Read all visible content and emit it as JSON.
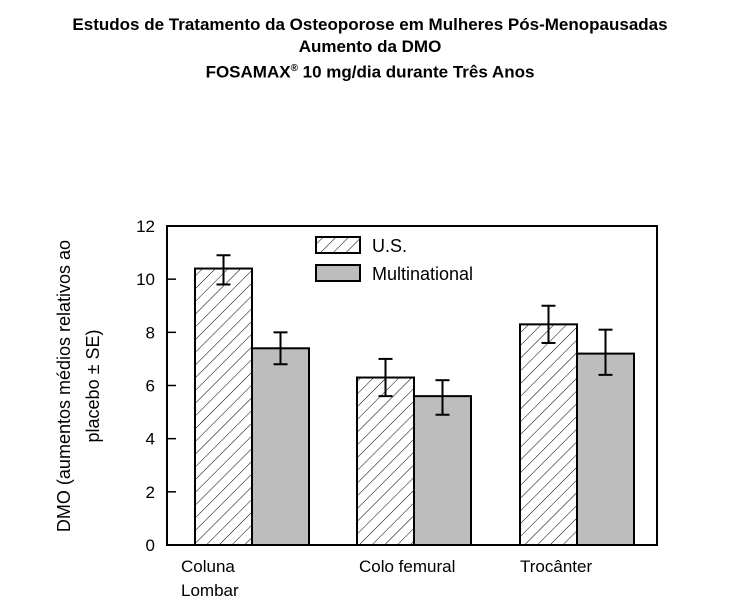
{
  "chart_data": {
    "type": "bar",
    "title_lines": [
      "Estudos de Tratamento da Osteoporose em Mulheres Pós-Menopausadas",
      "Aumento da DMO"
    ],
    "title_line3_brand": "FOSAMAX",
    "title_line3_mark": "®",
    "title_line3_rest": " 10 mg/dia durante Três Anos",
    "ylabel_line1": "DMO (aumentos médios relativos ao",
    "ylabel_line2": "placebo ± SE)",
    "xlabel": "",
    "categories": [
      "Coluna Lombar",
      "Colo femural",
      "Trocânter"
    ],
    "category_lines": [
      [
        "Coluna",
        "Lombar"
      ],
      [
        "Colo femural"
      ],
      [
        "Trocânter"
      ]
    ],
    "ylim": [
      0,
      12
    ],
    "yticks": [
      0,
      2,
      4,
      6,
      8,
      10,
      12
    ],
    "ytick_labels": [
      "0",
      "2",
      "4",
      "6",
      "8",
      "10",
      "12"
    ],
    "grid": false,
    "legend_position": "top-center",
    "series": [
      {
        "name": "U.S.",
        "values": [
          10.4,
          6.3,
          8.3
        ],
        "err_low": [
          9.8,
          5.6,
          7.6
        ],
        "err_high": [
          10.9,
          7.0,
          9.0
        ],
        "pattern": "hatched",
        "color": "#ffffff"
      },
      {
        "name": "Multinational",
        "values": [
          7.4,
          5.6,
          7.2
        ],
        "err_low": [
          6.8,
          4.9,
          6.4
        ],
        "err_high": [
          8.0,
          6.2,
          8.1
        ],
        "pattern": "solid",
        "color": "#bdbdbd"
      }
    ]
  }
}
